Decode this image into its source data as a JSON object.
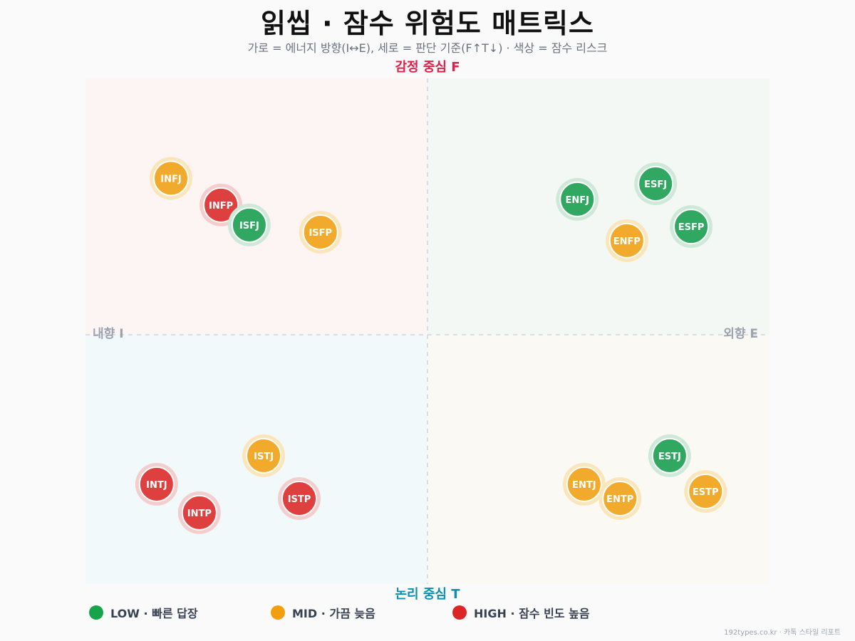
{
  "header": {
    "title": "읽씹 · 잠수 위험도 매트릭스",
    "subtitle": "가로 = 에너지 방향(I↔E), 세로 = 판단 기준(F↑T↓) · 색상 = 잠수 리스크"
  },
  "colors": {
    "low": "#16a34a",
    "mid": "#f59e0b",
    "high": "#dc2626",
    "axis_f": "#e11d48",
    "axis_t": "#0891b2",
    "axis_ie": "#9ca3af"
  },
  "chart_data": {
    "type": "scatter",
    "title": "읽씹 · 잠수 위험도 매트릭스",
    "subtitle": "가로 = 에너지 방향(I↔E), 세로 = 판단 기준(F↑T↓) · 색상 = 잠수 리스크",
    "axis_labels": {
      "top": "감정 중심 F",
      "bottom": "논리 중심 T",
      "left": "내향 I",
      "right": "외향 E"
    },
    "xlim": [
      -1,
      1
    ],
    "ylim": [
      -1,
      1
    ],
    "grid": false,
    "legend_position": "bottom",
    "points": [
      {
        "label": "INFJ",
        "x": -0.75,
        "y": 0.61,
        "risk": "mid"
      },
      {
        "label": "INFP",
        "x": -0.604,
        "y": 0.506,
        "risk": "high"
      },
      {
        "label": "ISFJ",
        "x": -0.521,
        "y": 0.428,
        "risk": "low"
      },
      {
        "label": "ISFP",
        "x": -0.313,
        "y": 0.4,
        "risk": "mid"
      },
      {
        "label": "ENFJ",
        "x": 0.438,
        "y": 0.528,
        "risk": "low"
      },
      {
        "label": "ESFJ",
        "x": 0.667,
        "y": 0.589,
        "risk": "low"
      },
      {
        "label": "ESFP",
        "x": 0.771,
        "y": 0.422,
        "risk": "low"
      },
      {
        "label": "ENFP",
        "x": 0.583,
        "y": 0.367,
        "risk": "mid"
      },
      {
        "label": "ISTJ",
        "x": -0.479,
        "y": -0.472,
        "risk": "mid"
      },
      {
        "label": "INTJ",
        "x": -0.792,
        "y": -0.583,
        "risk": "high"
      },
      {
        "label": "INTP",
        "x": -0.667,
        "y": -0.694,
        "risk": "high"
      },
      {
        "label": "ISTP",
        "x": -0.375,
        "y": -0.639,
        "risk": "high"
      },
      {
        "label": "ESTJ",
        "x": 0.708,
        "y": -0.472,
        "risk": "low"
      },
      {
        "label": "ENTJ",
        "x": 0.458,
        "y": -0.583,
        "risk": "mid"
      },
      {
        "label": "ENTP",
        "x": 0.563,
        "y": -0.639,
        "risk": "mid"
      },
      {
        "label": "ESTP",
        "x": 0.813,
        "y": -0.611,
        "risk": "mid"
      }
    ]
  },
  "legend": [
    {
      "key": "low",
      "label": "LOW · 빠른 답장"
    },
    {
      "key": "mid",
      "label": "MID · 가끔 늦음"
    },
    {
      "key": "high",
      "label": "HIGH · 잠수 빈도 높음"
    }
  ],
  "footer": "192types.co.kr · 카톡 스타일 리포트"
}
